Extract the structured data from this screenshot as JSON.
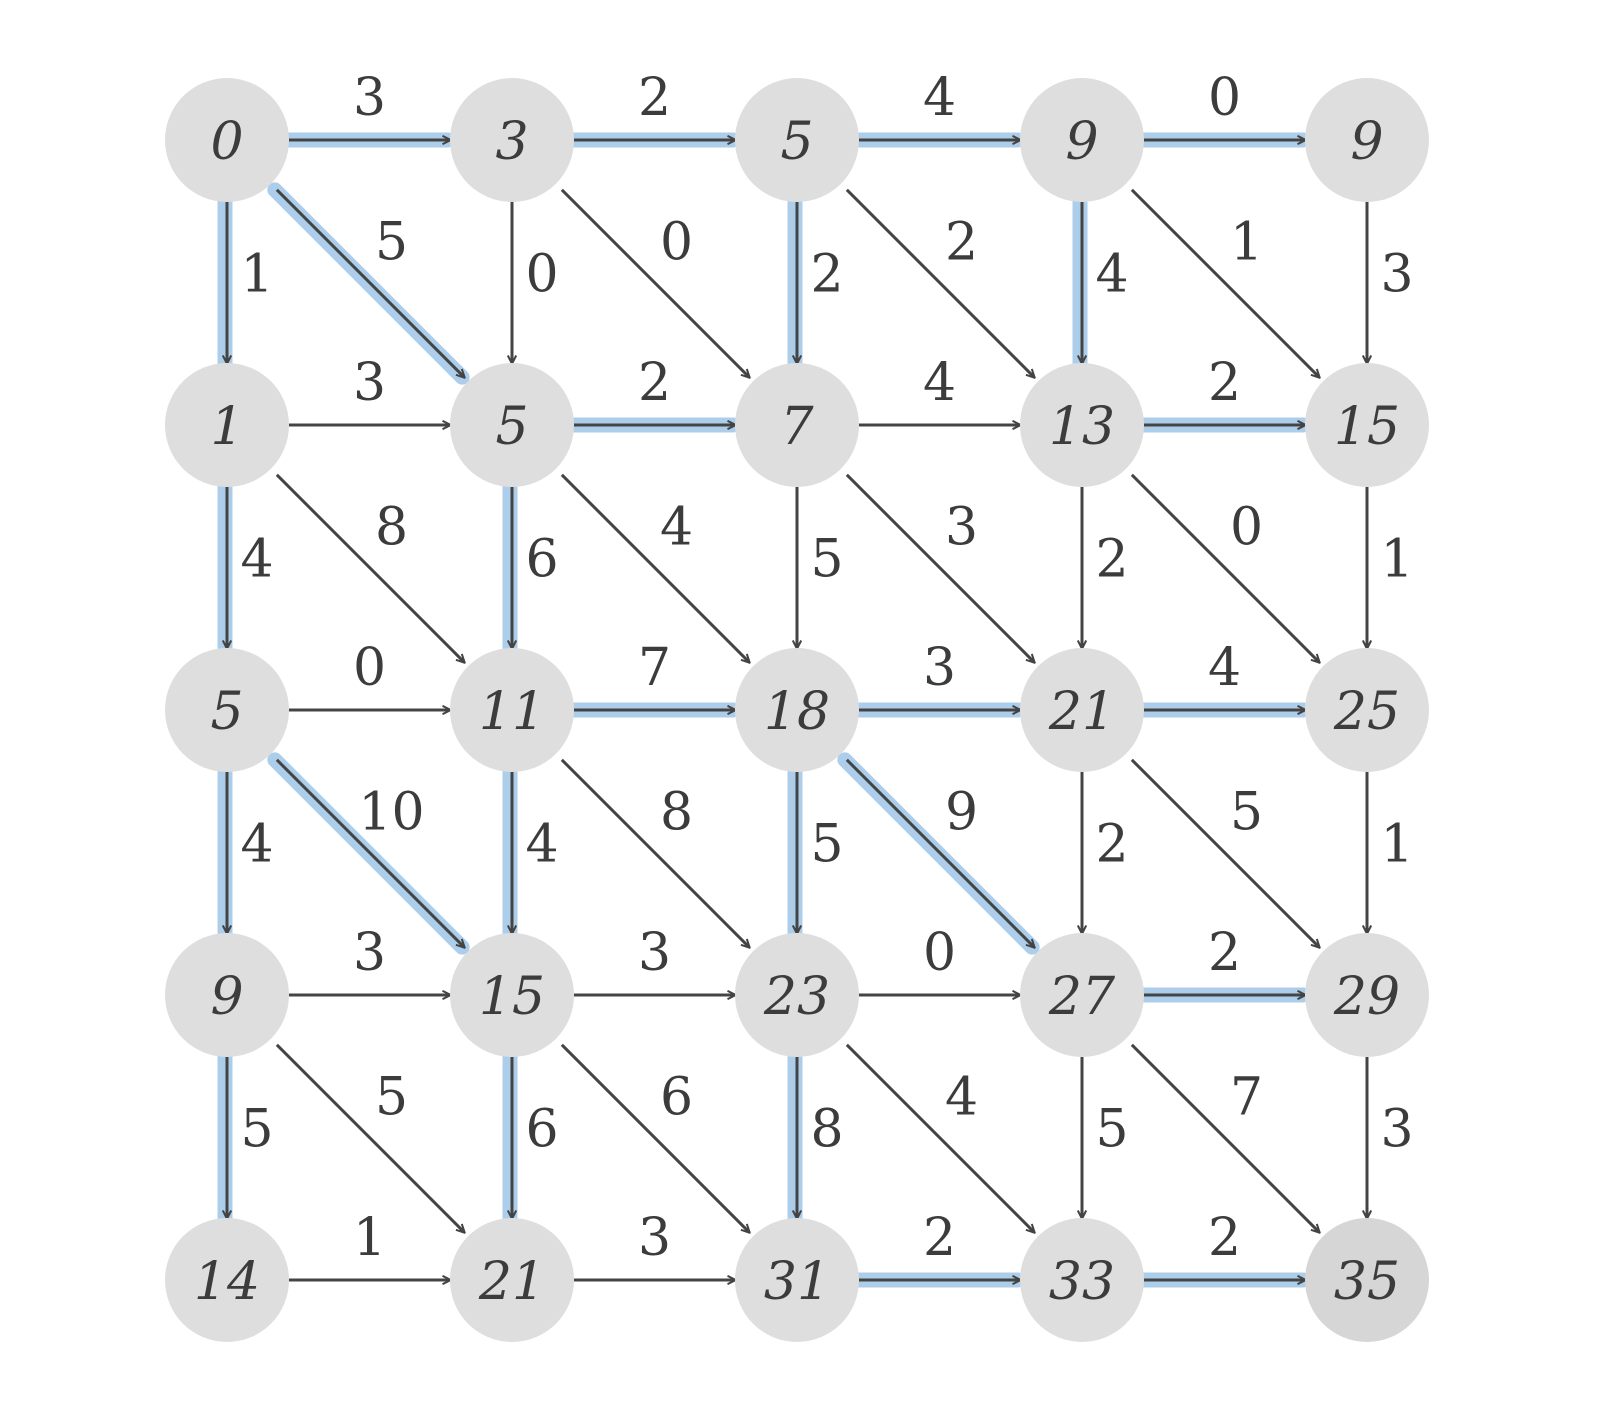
{
  "diagram": {
    "colors": {
      "node_fill": "#dedede",
      "edge": "#444444",
      "highlight": "#a9cbea",
      "text": "#3c3c3c"
    },
    "nodes": [
      [
        "0",
        "3",
        "5",
        "9",
        "9"
      ],
      [
        "1",
        "5",
        "7",
        "13",
        "15"
      ],
      [
        "5",
        "11",
        "18",
        "21",
        "25"
      ],
      [
        "9",
        "15",
        "23",
        "27",
        "29"
      ],
      [
        "14",
        "21",
        "31",
        "33",
        "35"
      ]
    ],
    "horizontal_weights": [
      [
        "3",
        "2",
        "4",
        "0"
      ],
      [
        "3",
        "2",
        "4",
        "2"
      ],
      [
        "0",
        "7",
        "3",
        "4"
      ],
      [
        "3",
        "3",
        "0",
        "2"
      ],
      [
        "1",
        "3",
        "2",
        "2"
      ]
    ],
    "vertical_weights": [
      [
        "1",
        "0",
        "2",
        "4",
        "3"
      ],
      [
        "4",
        "6",
        "5",
        "2",
        "1"
      ],
      [
        "4",
        "4",
        "5",
        "2",
        "1"
      ],
      [
        "5",
        "6",
        "8",
        "5",
        "3"
      ]
    ],
    "diagonal_weights": [
      [
        "5",
        "0",
        "2",
        "1"
      ],
      [
        "8",
        "4",
        "3",
        "0"
      ],
      [
        "10",
        "8",
        "9",
        "5"
      ],
      [
        "5",
        "6",
        "4",
        "7"
      ]
    ],
    "highlighted": {
      "horizontal": [
        [
          0,
          0
        ],
        [
          0,
          1
        ],
        [
          0,
          2
        ],
        [
          0,
          3
        ],
        [
          1,
          1
        ],
        [
          1,
          3
        ],
        [
          2,
          1
        ],
        [
          2,
          2
        ],
        [
          2,
          3
        ],
        [
          3,
          3
        ],
        [
          4,
          2
        ],
        [
          4,
          3
        ]
      ],
      "vertical": [
        [
          0,
          0
        ],
        [
          0,
          2
        ],
        [
          0,
          3
        ],
        [
          1,
          0
        ],
        [
          1,
          1
        ],
        [
          2,
          0
        ],
        [
          2,
          1
        ],
        [
          2,
          2
        ],
        [
          3,
          0
        ],
        [
          3,
          1
        ],
        [
          3,
          2
        ]
      ],
      "diagonal": [
        [
          0,
          0
        ],
        [
          2,
          0
        ],
        [
          2,
          2
        ]
      ]
    }
  }
}
